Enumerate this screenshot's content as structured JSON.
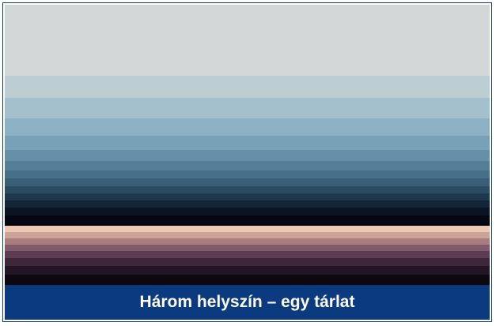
{
  "caption": "Három helyszín – egy tárlat"
}
